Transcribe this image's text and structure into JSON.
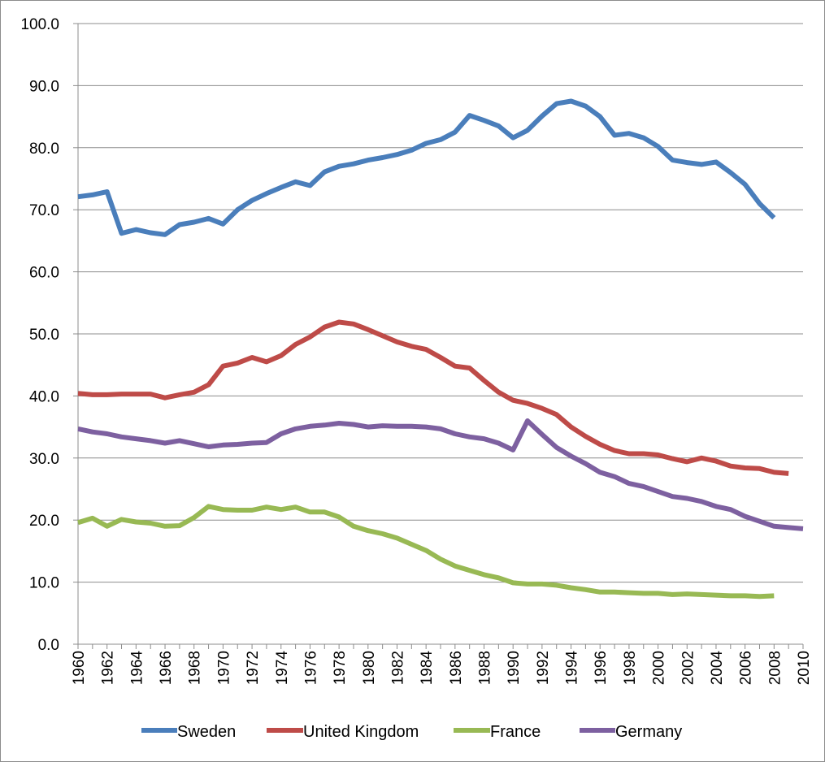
{
  "chart_data": {
    "type": "line",
    "title": "",
    "xlabel": "",
    "ylabel": "",
    "xlim": [
      1960,
      2010
    ],
    "ylim": [
      0,
      100
    ],
    "y_ticks": [
      "0.0",
      "10.0",
      "20.0",
      "30.0",
      "40.0",
      "50.0",
      "60.0",
      "70.0",
      "80.0",
      "90.0",
      "100.0"
    ],
    "x_ticks": [
      "1960",
      "1962",
      "1964",
      "1966",
      "1968",
      "1970",
      "1972",
      "1974",
      "1976",
      "1978",
      "1980",
      "1982",
      "1984",
      "1986",
      "1988",
      "1990",
      "1992",
      "1994",
      "1996",
      "1998",
      "2000",
      "2002",
      "2004",
      "2006",
      "2008",
      "2010"
    ],
    "grid": true,
    "legend_position": "bottom",
    "series": [
      {
        "name": "Sweden",
        "color": "#4a7ebb",
        "x": [
          1960,
          1961,
          1962,
          1963,
          1964,
          1965,
          1966,
          1967,
          1968,
          1969,
          1970,
          1971,
          1972,
          1973,
          1974,
          1975,
          1976,
          1977,
          1978,
          1979,
          1980,
          1981,
          1982,
          1983,
          1984,
          1985,
          1986,
          1987,
          1988,
          1989,
          1990,
          1991,
          1992,
          1993,
          1994,
          1995,
          1996,
          1997,
          1998,
          1999,
          2000,
          2001,
          2002,
          2003,
          2004,
          2005,
          2006,
          2007,
          2008
        ],
        "values": [
          72.1,
          72.4,
          72.9,
          66.2,
          66.8,
          66.3,
          66.0,
          67.6,
          68.0,
          68.6,
          67.7,
          70.0,
          71.5,
          72.6,
          73.6,
          74.5,
          73.9,
          76.1,
          77.0,
          77.4,
          78.0,
          78.4,
          78.9,
          79.6,
          80.7,
          81.3,
          82.5,
          85.2,
          84.4,
          83.5,
          81.6,
          82.8,
          85.1,
          87.1,
          87.5,
          86.7,
          85.0,
          82.0,
          82.3,
          81.6,
          80.2,
          78.0,
          77.6,
          77.3,
          77.7,
          76.0,
          74.1,
          71.0,
          68.7
        ]
      },
      {
        "name": "United Kingdom",
        "color": "#be4b48",
        "x": [
          1960,
          1961,
          1962,
          1963,
          1964,
          1965,
          1966,
          1967,
          1968,
          1969,
          1970,
          1971,
          1972,
          1973,
          1974,
          1975,
          1976,
          1977,
          1978,
          1979,
          1980,
          1981,
          1982,
          1983,
          1984,
          1985,
          1986,
          1987,
          1988,
          1989,
          1990,
          1991,
          1992,
          1993,
          1994,
          1995,
          1996,
          1997,
          1998,
          1999,
          2000,
          2001,
          2002,
          2003,
          2004,
          2005,
          2006,
          2007,
          2008,
          2009
        ],
        "values": [
          40.4,
          40.2,
          40.2,
          40.3,
          40.3,
          40.3,
          39.7,
          40.2,
          40.6,
          41.8,
          44.8,
          45.3,
          46.2,
          45.5,
          46.5,
          48.3,
          49.5,
          51.1,
          51.9,
          51.6,
          50.7,
          49.7,
          48.7,
          48.0,
          47.5,
          46.2,
          44.8,
          44.5,
          42.5,
          40.6,
          39.3,
          38.8,
          38.0,
          37.0,
          35.0,
          33.5,
          32.2,
          31.2,
          30.7,
          30.7,
          30.5,
          29.9,
          29.4,
          30.0,
          29.5,
          28.7,
          28.4,
          28.3,
          27.7,
          27.5
        ]
      },
      {
        "name": "France",
        "color": "#98b954",
        "x": [
          1960,
          1961,
          1962,
          1963,
          1964,
          1965,
          1966,
          1967,
          1968,
          1969,
          1970,
          1971,
          1972,
          1973,
          1974,
          1975,
          1976,
          1977,
          1978,
          1979,
          1980,
          1981,
          1982,
          1983,
          1984,
          1985,
          1986,
          1987,
          1988,
          1989,
          1990,
          1991,
          1992,
          1993,
          1994,
          1995,
          1996,
          1997,
          1998,
          1999,
          2000,
          2001,
          2002,
          2003,
          2004,
          2005,
          2006,
          2007,
          2008
        ],
        "values": [
          19.6,
          20.3,
          19.0,
          20.1,
          19.7,
          19.5,
          19.0,
          19.1,
          20.4,
          22.2,
          21.7,
          21.6,
          21.6,
          22.1,
          21.7,
          22.1,
          21.3,
          21.3,
          20.5,
          19.0,
          18.3,
          17.8,
          17.1,
          16.1,
          15.1,
          13.7,
          12.6,
          11.9,
          11.2,
          10.7,
          9.9,
          9.7,
          9.7,
          9.5,
          9.1,
          8.8,
          8.4,
          8.4,
          8.3,
          8.2,
          8.2,
          8.0,
          8.1,
          8.0,
          7.9,
          7.8,
          7.8,
          7.7,
          7.8
        ]
      },
      {
        "name": "Germany",
        "color": "#7d60a0",
        "x": [
          1960,
          1961,
          1962,
          1963,
          1964,
          1965,
          1966,
          1967,
          1968,
          1969,
          1970,
          1971,
          1972,
          1973,
          1974,
          1975,
          1976,
          1977,
          1978,
          1979,
          1980,
          1981,
          1982,
          1983,
          1984,
          1985,
          1986,
          1987,
          1988,
          1989,
          1990,
          1991,
          1992,
          1993,
          1994,
          1995,
          1996,
          1997,
          1998,
          1999,
          2000,
          2001,
          2002,
          2003,
          2004,
          2005,
          2006,
          2007,
          2008,
          2009,
          2010
        ],
        "values": [
          34.7,
          34.2,
          33.9,
          33.4,
          33.1,
          32.8,
          32.4,
          32.8,
          32.3,
          31.8,
          32.1,
          32.2,
          32.4,
          32.5,
          33.9,
          34.7,
          35.1,
          35.3,
          35.6,
          35.4,
          35.0,
          35.2,
          35.1,
          35.1,
          35.0,
          34.7,
          33.9,
          33.4,
          33.1,
          32.4,
          31.3,
          36.0,
          33.8,
          31.7,
          30.3,
          29.1,
          27.7,
          27.0,
          25.9,
          25.4,
          24.6,
          23.8,
          23.5,
          23.0,
          22.2,
          21.7,
          20.6,
          19.8,
          19.0,
          18.8,
          18.6
        ]
      }
    ]
  }
}
